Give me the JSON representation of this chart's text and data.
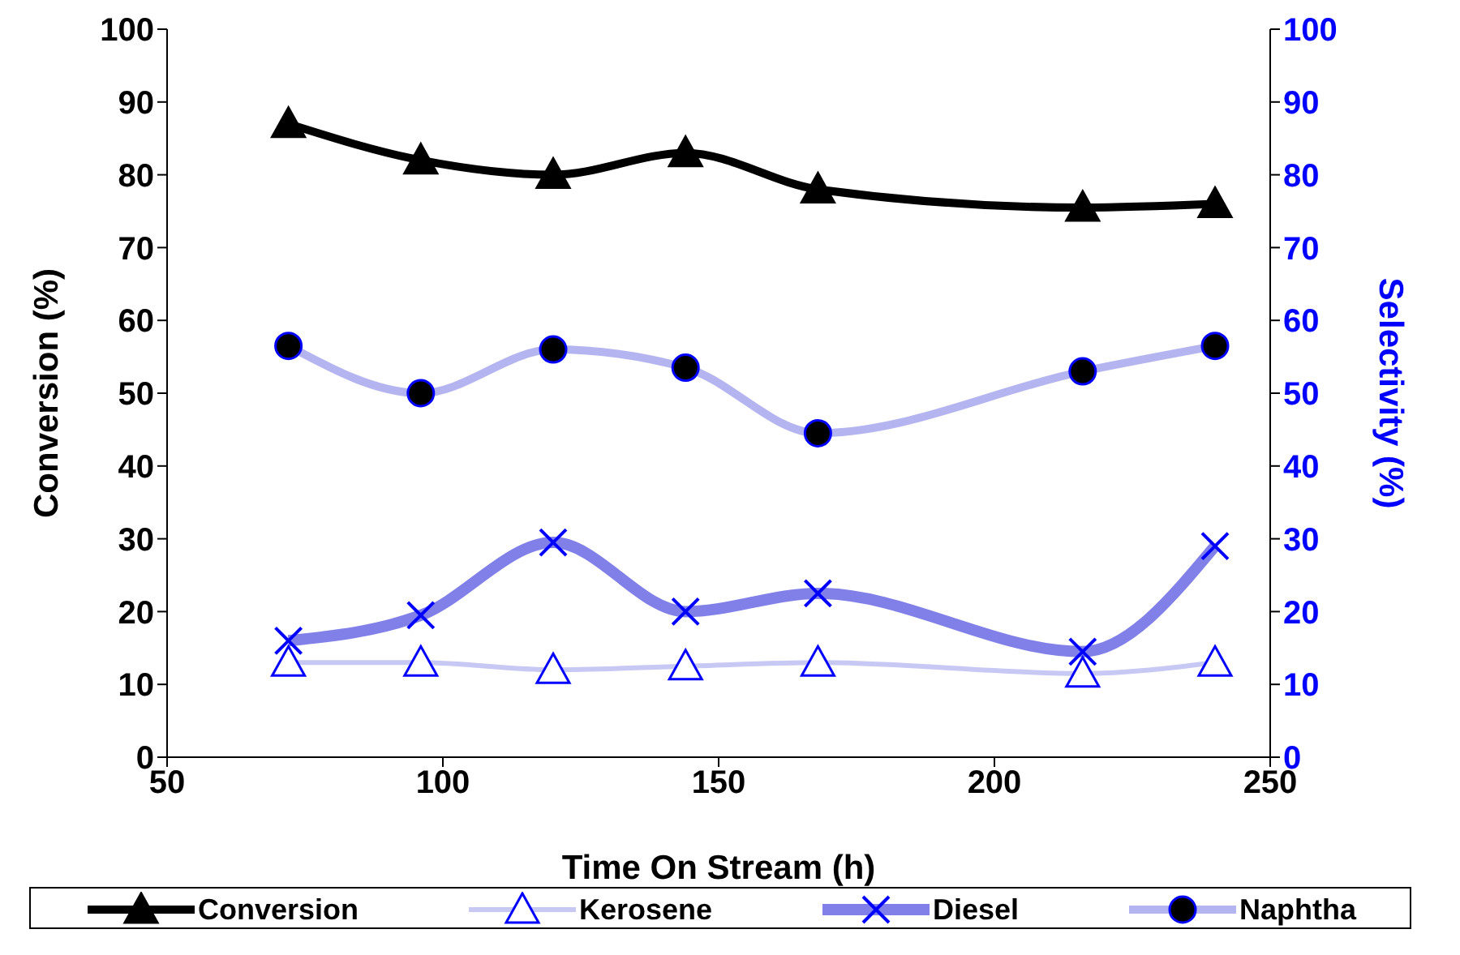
{
  "chart_data": {
    "type": "line",
    "xlabel": "Time On Stream (h)",
    "ylabel": "Conversion (%)",
    "y2label": "Selectivity (%)",
    "x": [
      72,
      96,
      120,
      144,
      168,
      216,
      240
    ],
    "series": [
      {
        "name": "Conversion",
        "color": "#000000",
        "marker": "triangle",
        "values": [
          87,
          82,
          80,
          83,
          78,
          75.5,
          76
        ]
      },
      {
        "name": "Kerosene",
        "color": "#c8c8f4",
        "marker": "triangle",
        "axis": "y2",
        "values": [
          13,
          13,
          12,
          12.5,
          13,
          11.5,
          13
        ]
      },
      {
        "name": "Diesel",
        "color": "#8080e8",
        "marker": "cross",
        "axis": "y2",
        "values": [
          16,
          19.5,
          29.5,
          20,
          22.5,
          14.5,
          29
        ]
      },
      {
        "name": "Naphtha",
        "color": "#b4b4f0",
        "marker": "circle",
        "axis": "y2",
        "values": [
          56.5,
          50,
          56,
          53.5,
          44.5,
          53,
          56.5
        ]
      }
    ],
    "xlim": [
      50,
      250
    ],
    "xticks": [
      50,
      100,
      150,
      200,
      250
    ],
    "ylim": [
      0,
      100
    ],
    "yticks": [
      0,
      10,
      20,
      30,
      40,
      50,
      60,
      70,
      80,
      90,
      100
    ],
    "y2lim": [
      0,
      100
    ],
    "y2ticks": [
      0,
      10,
      20,
      30,
      40,
      50,
      60,
      70,
      80,
      90,
      100
    ],
    "grid": false,
    "legend": "bottom"
  }
}
